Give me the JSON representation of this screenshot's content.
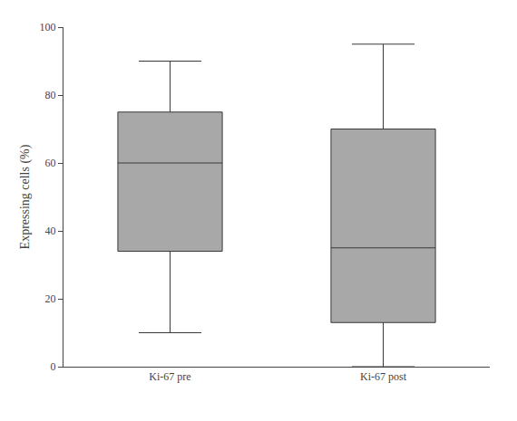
{
  "chart_data": {
    "type": "box",
    "categories": [
      "Ki-67 pre",
      "Ki-67 post"
    ],
    "whisker_low": [
      10,
      0
    ],
    "q1": [
      34,
      13
    ],
    "median": [
      60,
      35
    ],
    "q3": [
      75,
      70
    ],
    "whisker_high": [
      90,
      95
    ],
    "ylabel": "Expressing cells (%)",
    "ylim": [
      0,
      100
    ],
    "yticks": [
      0,
      20,
      40,
      60,
      80,
      100
    ],
    "color": "#a8a8a8",
    "grid": false
  }
}
